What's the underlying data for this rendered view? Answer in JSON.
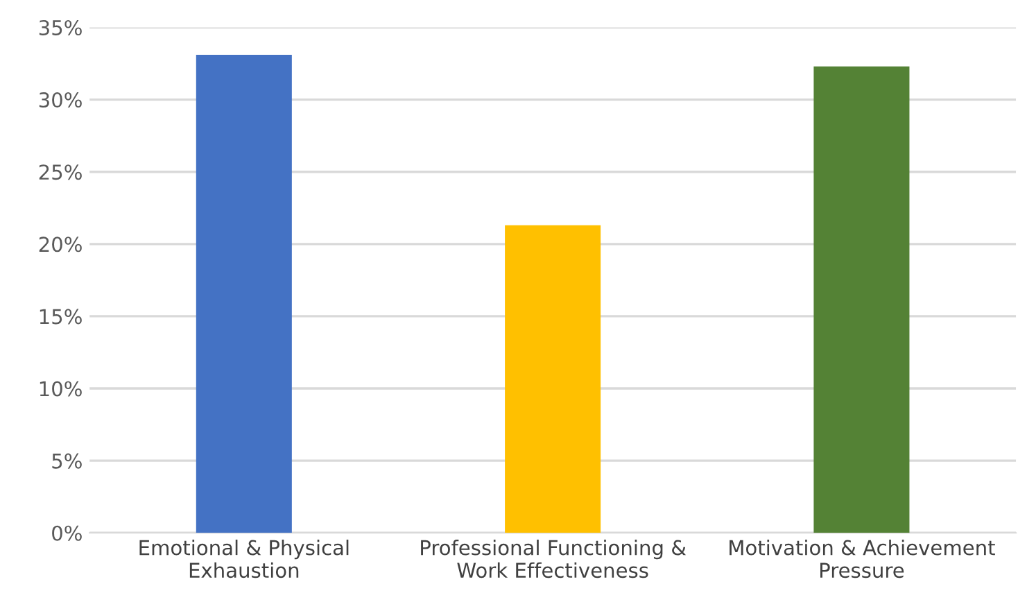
{
  "chart_data": {
    "type": "bar",
    "categories": [
      "Emotional & Physical\nExhaustion",
      "Professional Functioning &\nWork Effectiveness",
      "Motivation & Achievement\nPressure"
    ],
    "values": [
      33.1,
      21.3,
      32.3
    ],
    "colors": [
      "#4472c4",
      "#ffc000",
      "#548235"
    ],
    "ylim": [
      0,
      35
    ],
    "yticks": [
      {
        "value": 0,
        "label": "0%"
      },
      {
        "value": 5,
        "label": "5%"
      },
      {
        "value": 10,
        "label": "10%"
      },
      {
        "value": 15,
        "label": "15%"
      },
      {
        "value": 20,
        "label": "20%"
      },
      {
        "value": 25,
        "label": "25%"
      },
      {
        "value": 30,
        "label": "30%"
      },
      {
        "value": 35,
        "label": "35%"
      }
    ],
    "grid": "y",
    "legend": false
  }
}
